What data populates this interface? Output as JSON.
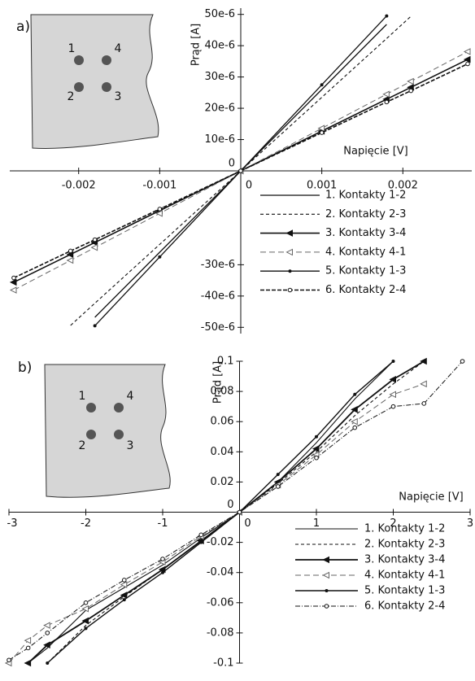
{
  "chart_data": [
    {
      "type": "line",
      "panel_label": "a)",
      "ylabel": "Prąd [A]",
      "xlabel": "Napięcie [V]",
      "inset_labels": [
        "1",
        "4",
        "2",
        "3"
      ],
      "xlim": [
        -0.00285,
        0.00285
      ],
      "ylim": [
        -5.2e-05,
        5.2e-05
      ],
      "xticks": [
        -0.002,
        -0.001,
        0,
        0.001,
        0.002
      ],
      "yticks": [
        {
          "value": 5e-05,
          "label": "50e-6"
        },
        {
          "value": 4e-05,
          "label": "40e-6"
        },
        {
          "value": 3e-05,
          "label": "30e-6"
        },
        {
          "value": 2e-05,
          "label": "20e-6"
        },
        {
          "value": 1e-05,
          "label": "10e-6"
        },
        0,
        {
          "value": -3e-05,
          "label": "-30e-6"
        },
        {
          "value": -4e-05,
          "label": "-40e-6"
        },
        {
          "value": -5e-05,
          "label": "-50e-6"
        }
      ],
      "x": [
        -0.0028,
        -0.0021,
        -0.0018,
        -0.001,
        0,
        0.001,
        0.0018,
        0.0021,
        0.0028
      ],
      "series": [
        {
          "name": "1.  Kontakty 1-2",
          "color": "#111111",
          "dash": "solid",
          "marker": "none",
          "width": 1.3,
          "values": [
            null,
            null,
            -4.68e-05,
            -2.6e-05,
            0,
            2.6e-05,
            4.68e-05,
            null,
            null
          ]
        },
        {
          "name": "2.  Kontakty 2-3",
          "color": "#111111",
          "dash": "4,3",
          "marker": "none",
          "width": 1.1,
          "values": [
            null,
            -4.94e-05,
            -4.23e-05,
            -2.35e-05,
            0,
            2.35e-05,
            4.23e-05,
            4.94e-05,
            null
          ]
        },
        {
          "name": "3.  Kontakty 3-4",
          "color": "#111111",
          "dash": "solid",
          "marker": "tri-filled",
          "width": 1.6,
          "values": [
            -3.56e-05,
            -2.67e-05,
            -2.29e-05,
            -1.27e-05,
            0,
            1.27e-05,
            2.29e-05,
            2.67e-05,
            3.56e-05
          ]
        },
        {
          "name": "4.  Kontakty 4-1",
          "color": "#666666",
          "dash": "7,4",
          "marker": "tri-open",
          "width": 1,
          "values": [
            -3.81e-05,
            -2.86e-05,
            -2.45e-05,
            -1.36e-05,
            0,
            1.36e-05,
            2.45e-05,
            2.86e-05,
            3.81e-05
          ]
        },
        {
          "name": "5.  Kontakty 1-3",
          "color": "#111111",
          "dash": "solid",
          "marker": "dot",
          "width": 1.3,
          "values": [
            null,
            null,
            -4.95e-05,
            -2.75e-05,
            0,
            2.75e-05,
            4.95e-05,
            null,
            null
          ]
        },
        {
          "name": "6.  Kontakty 2-4",
          "color": "#111111",
          "dash": "5,2",
          "marker": "circle-open",
          "width": 1.6,
          "values": [
            -3.42e-05,
            -2.56e-05,
            -2.2e-05,
            -1.22e-05,
            0,
            1.22e-05,
            2.2e-05,
            2.56e-05,
            3.42e-05
          ]
        }
      ]
    },
    {
      "type": "line",
      "panel_label": "b)",
      "ylabel": "Prąd [A]",
      "xlabel": "Napięcie [V]",
      "inset_labels": [
        "1",
        "4",
        "2",
        "3"
      ],
      "xlim": [
        -3,
        3
      ],
      "ylim": [
        -0.1,
        0.1
      ],
      "xticks": [
        -3,
        -2,
        -1,
        0,
        1,
        2,
        3
      ],
      "yticks": [
        0.1,
        0.08,
        0.06,
        0.04,
        0.02,
        0,
        -0.02,
        -0.04,
        -0.06,
        -0.08,
        -0.1
      ],
      "x": [
        -3,
        -2.75,
        -2.5,
        -2,
        -1.5,
        -1,
        -0.5,
        0,
        0.5,
        1,
        1.5,
        2,
        2.4,
        2.9
      ],
      "series": [
        {
          "name": "1.  Kontakty 1-2",
          "color": "#111111",
          "dash": "solid",
          "marker": "none",
          "width": 1.1,
          "values": [
            null,
            -0.1,
            -0.09,
            -0.065,
            -0.05,
            -0.035,
            -0.017,
            0,
            0.02,
            0.046,
            0.075,
            0.1,
            null,
            null
          ]
        },
        {
          "name": "2.  Kontakty 2-3",
          "color": "#111111",
          "dash": "4,3",
          "marker": "none",
          "width": 1.1,
          "values": [
            null,
            null,
            -0.1,
            -0.075,
            -0.056,
            -0.038,
            -0.019,
            0,
            0.019,
            0.04,
            0.064,
            0.085,
            0.1,
            null
          ]
        },
        {
          "name": "3.  Kontakty 3-4",
          "color": "#111111",
          "dash": "solid",
          "marker": "tri-filled",
          "width": 1.8,
          "values": [
            null,
            -0.1,
            -0.088,
            -0.072,
            -0.055,
            -0.038,
            -0.019,
            0,
            0.02,
            0.042,
            0.068,
            0.088,
            0.1,
            null
          ]
        },
        {
          "name": "4.  Kontakty 4-1",
          "color": "#666666",
          "dash": "7,4",
          "marker": "tri-open",
          "width": 1,
          "values": [
            -0.1,
            -0.085,
            -0.075,
            -0.064,
            -0.048,
            -0.033,
            -0.016,
            0,
            0.018,
            0.038,
            0.06,
            0.078,
            0.085,
            null
          ]
        },
        {
          "name": "5.  Kontakty 1-3",
          "color": "#111111",
          "dash": "solid",
          "marker": "dot",
          "width": 1.4,
          "values": [
            null,
            null,
            -0.1,
            -0.077,
            -0.058,
            -0.04,
            -0.02,
            0,
            0.025,
            0.05,
            0.078,
            0.1,
            null,
            null
          ]
        },
        {
          "name": "6.  Kontakty 2-4",
          "color": "#111111",
          "dash": "6,2,1,2",
          "marker": "circle-open",
          "width": 1,
          "values": [
            -0.098,
            -0.09,
            -0.08,
            -0.06,
            -0.045,
            -0.031,
            -0.015,
            0,
            0.017,
            0.036,
            0.056,
            0.07,
            0.072,
            0.1
          ]
        }
      ]
    }
  ]
}
